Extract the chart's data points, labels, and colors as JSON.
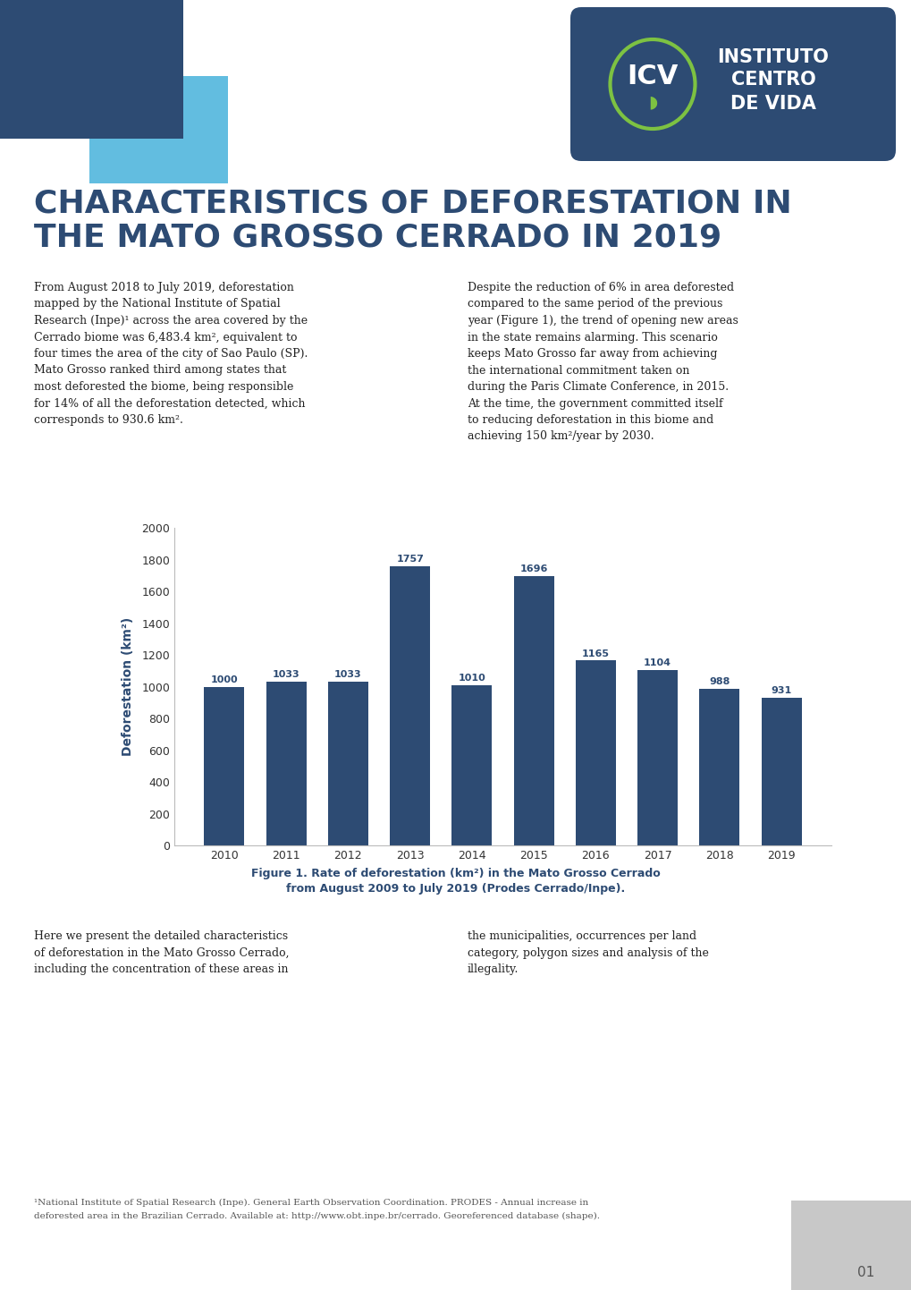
{
  "title_line1": "CHARACTERISTICS OF DEFORESTATION IN",
  "title_line2": "THE MATO GROSSO CERRADO IN 2019",
  "title_color": "#2d4b73",
  "body_color": "#222222",
  "bar_color": "#2d4b73",
  "bar_years": [
    2010,
    2011,
    2012,
    2013,
    2014,
    2015,
    2016,
    2017,
    2018,
    2019
  ],
  "bar_values": [
    1000,
    1033,
    1033,
    1757,
    1010,
    1696,
    1165,
    1104,
    988,
    931
  ],
  "ylabel": "Deforestation (km²)",
  "ylim": [
    0,
    2000
  ],
  "yticks": [
    0,
    200,
    400,
    600,
    800,
    1000,
    1200,
    1400,
    1600,
    1800,
    2000
  ],
  "fig_caption_line1": "Figure 1. Rate of deforestation (km²) in the Mato Grosso Cerrado",
  "fig_caption_line2": "from August 2009 to July 2019 (Prodes Cerrado/Inpe).",
  "caption_color": "#2d4b73",
  "bg_color": "#ffffff",
  "dark_blue": "#2d4b73",
  "light_blue": "#62bde0",
  "para1_left": "From August 2018 to July 2019, deforestation\nmapped by the National Institute of Spatial\nResearch (Inpe)¹ across the area covered by the\nCerrado biome was 6,483.4 km², equivalent to\nfour times the area of the city of Sao Paulo (SP).\nMato Grosso ranked third among states that\nmost deforested the biome, being responsible\nfor 14% of all the deforestation detected, which\ncorresponds to 930.6 km².",
  "para1_right": "Despite the reduction of 6% in area deforested\ncompared to the same period of the previous\nyear (Figure 1), the trend of opening new areas\nin the state remains alarming. This scenario\nkeeps Mato Grosso far away from achieving\nthe international commitment taken on\nduring the Paris Climate Conference, in 2015.\nAt the time, the government committed itself\nto reducing deforestation in this biome and\nachieving 150 km²/year by 2030.",
  "para2_left": "Here we present the detailed characteristics\nof deforestation in the Mato Grosso Cerrado,\nincluding the concentration of these areas in",
  "para2_right": "the municipalities, occurrences per land\ncategory, polygon sizes and analysis of the\nillegality.",
  "footnote_line1": "¹National Institute of Spatial Research (Inpe). General Earth Observation Coordination. PRODES - Annual increase in",
  "footnote_line2": "deforested area in the Brazilian Cerrado. Available at: http://www.obt.inpe.br/cerrado. Georeferenced database (shape).",
  "page_number": "01",
  "grey_box_color": "#c8c8c8"
}
